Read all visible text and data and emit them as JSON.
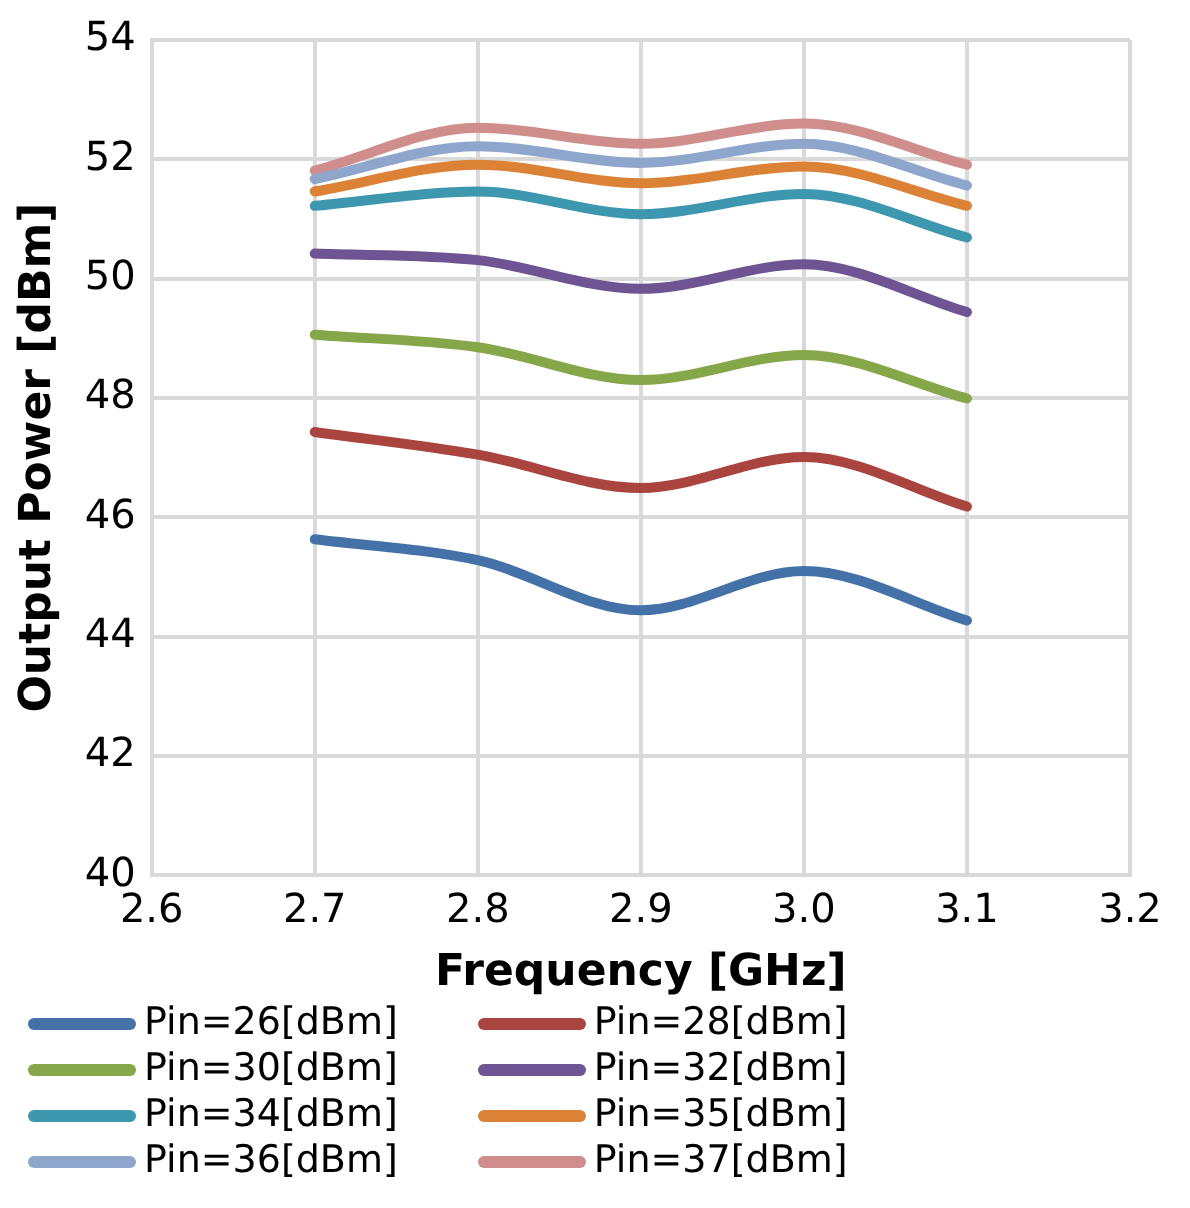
{
  "chart_data": {
    "type": "line",
    "xlabel": "Frequency [GHz]",
    "ylabel": "Output Power [dBm]",
    "x": [
      2.7,
      2.8,
      2.9,
      3.0,
      3.1
    ],
    "xlim": [
      2.6,
      3.2
    ],
    "xticks": [
      {
        "value": 2.6,
        "label": "2.6"
      },
      {
        "value": 2.7,
        "label": "2.7"
      },
      {
        "value": 2.8,
        "label": "2.8"
      },
      {
        "value": 2.9,
        "label": "2.9"
      },
      {
        "value": 3.0,
        "label": "3.0"
      },
      {
        "value": 3.1,
        "label": "3.1"
      },
      {
        "value": 3.2,
        "label": "3.2"
      }
    ],
    "ylim": [
      40,
      54
    ],
    "yticks": [
      40,
      42,
      44,
      46,
      48,
      50,
      52,
      54
    ],
    "grid": true,
    "legend": "bottom",
    "marker": "none",
    "line_style": "solid",
    "series": [
      {
        "name": "Pin=26[dBm]",
        "color": "#4472a8",
        "values": [
          45.63,
          45.28,
          44.44,
          45.1,
          44.27
        ]
      },
      {
        "name": "Pin=28[dBm]",
        "color": "#a9443f",
        "values": [
          47.43,
          47.05,
          46.49,
          47.01,
          46.18
        ]
      },
      {
        "name": "Pin=30[dBm]",
        "color": "#86a64a",
        "values": [
          49.06,
          48.85,
          48.3,
          48.72,
          47.99
        ]
      },
      {
        "name": "Pin=32[dBm]",
        "color": "#6e5493",
        "values": [
          50.42,
          50.31,
          49.83,
          50.24,
          49.44
        ]
      },
      {
        "name": "Pin=34[dBm]",
        "color": "#3d97ae",
        "values": [
          51.22,
          51.46,
          51.08,
          51.42,
          50.69
        ]
      },
      {
        "name": "Pin=35[dBm]",
        "color": "#dc8236",
        "values": [
          51.46,
          51.91,
          51.6,
          51.88,
          51.22
        ]
      },
      {
        "name": "Pin=36[dBm]",
        "color": "#8fa6cc",
        "values": [
          51.67,
          52.22,
          51.94,
          52.26,
          51.56
        ]
      },
      {
        "name": "Pin=37[dBm]",
        "color": "#cf8d8b",
        "values": [
          51.81,
          52.53,
          52.26,
          52.6,
          51.91
        ]
      }
    ]
  }
}
